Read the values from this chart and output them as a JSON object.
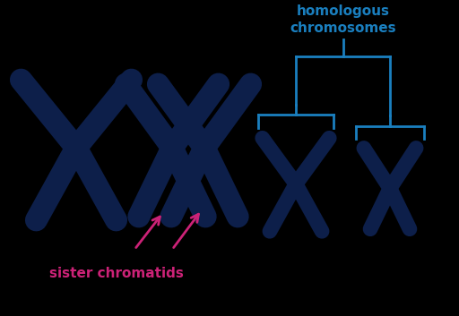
{
  "background_color": "#000000",
  "chromosome_color": "#0d1f4a",
  "arrow_color": "#cc2277",
  "bracket_color": "#1a7fbf",
  "label_color_pink": "#cc2277",
  "label_color_blue": "#1a7fbf",
  "sister_chromatids_text": "sister chromatids",
  "homologous_text_line1": "homologous",
  "homologous_text_line2": "chromosomes",
  "fig_width": 5.12,
  "fig_height": 3.53
}
